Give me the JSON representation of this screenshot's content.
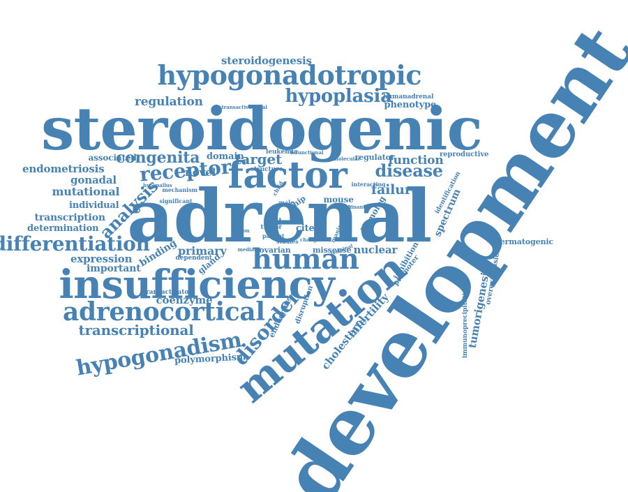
{
  "color": "#4682b4",
  "words": [
    "development",
    "adrenal",
    "steroidogenic",
    "mutation",
    "insufficiency",
    "factor",
    "hypogonadotropic",
    "human",
    "adrenocortical",
    "hypogonadism",
    "receptor",
    "differentiation",
    "disease",
    "hypoplasia",
    "target",
    "disorder",
    "analysis",
    "congenita",
    "transcriptional",
    "failure",
    "function",
    "steroidogenesis",
    "regulation",
    "endometriosis",
    "mutational",
    "primary",
    "spermatogenic",
    "tumorigenesis",
    "infertility",
    "cholesterol",
    "spectrum",
    "polymorphism",
    "expression",
    "transcription",
    "nuclear",
    "binding",
    "important",
    "gonadal",
    "individual",
    "determination",
    "novel",
    "coenzyme",
    "cited",
    "domain",
    "associated",
    "phenotype",
    "humanadrenal",
    "reproductive",
    "mouse",
    "cell",
    "homolog",
    "promoter",
    "inhibition",
    "regulator",
    "missense",
    "ovarian",
    "gland",
    "endocrine",
    "disruption",
    "overexpression",
    "immunoprecipitation",
    "identification",
    "transactivator",
    "dependent",
    "leukemia",
    "tumor",
    "structure",
    "interacting",
    "mechanism",
    "significant",
    "patient",
    "studies",
    "male",
    "manipulation",
    "transactivational",
    "chip",
    "hypopallus",
    "bifunctional",
    "molecular",
    "child",
    "region",
    "change",
    "terminal",
    "mediator",
    "dominant"
  ]
}
